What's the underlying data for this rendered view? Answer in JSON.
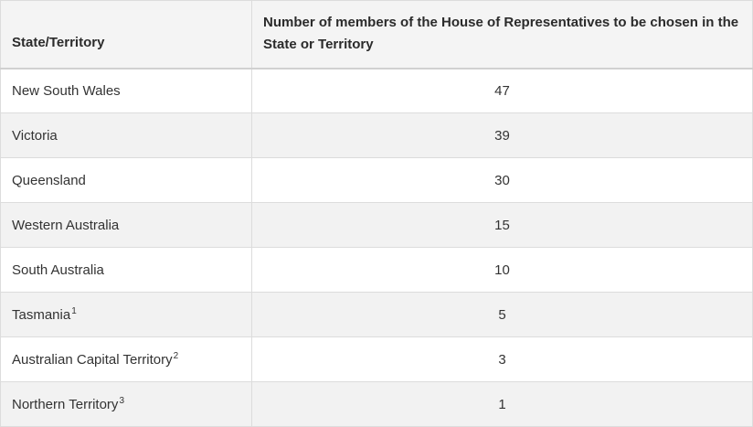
{
  "table": {
    "headers": {
      "state": "State/Territory",
      "members": "Number of members of the House of Representatives to be chosen in the State or Territory"
    },
    "rows": [
      {
        "state": "New South Wales",
        "footnote": "",
        "members": "47"
      },
      {
        "state": "Victoria",
        "footnote": "",
        "members": "39"
      },
      {
        "state": "Queensland",
        "footnote": "",
        "members": "30"
      },
      {
        "state": "Western Australia",
        "footnote": "",
        "members": "15"
      },
      {
        "state": "South Australia",
        "footnote": "",
        "members": "10"
      },
      {
        "state": "Tasmania",
        "footnote": "1",
        "members": "5"
      },
      {
        "state": "Australian Capital Territory",
        "footnote": "2",
        "members": "3"
      },
      {
        "state": "Northern Territory",
        "footnote": "3",
        "members": "1"
      }
    ]
  }
}
